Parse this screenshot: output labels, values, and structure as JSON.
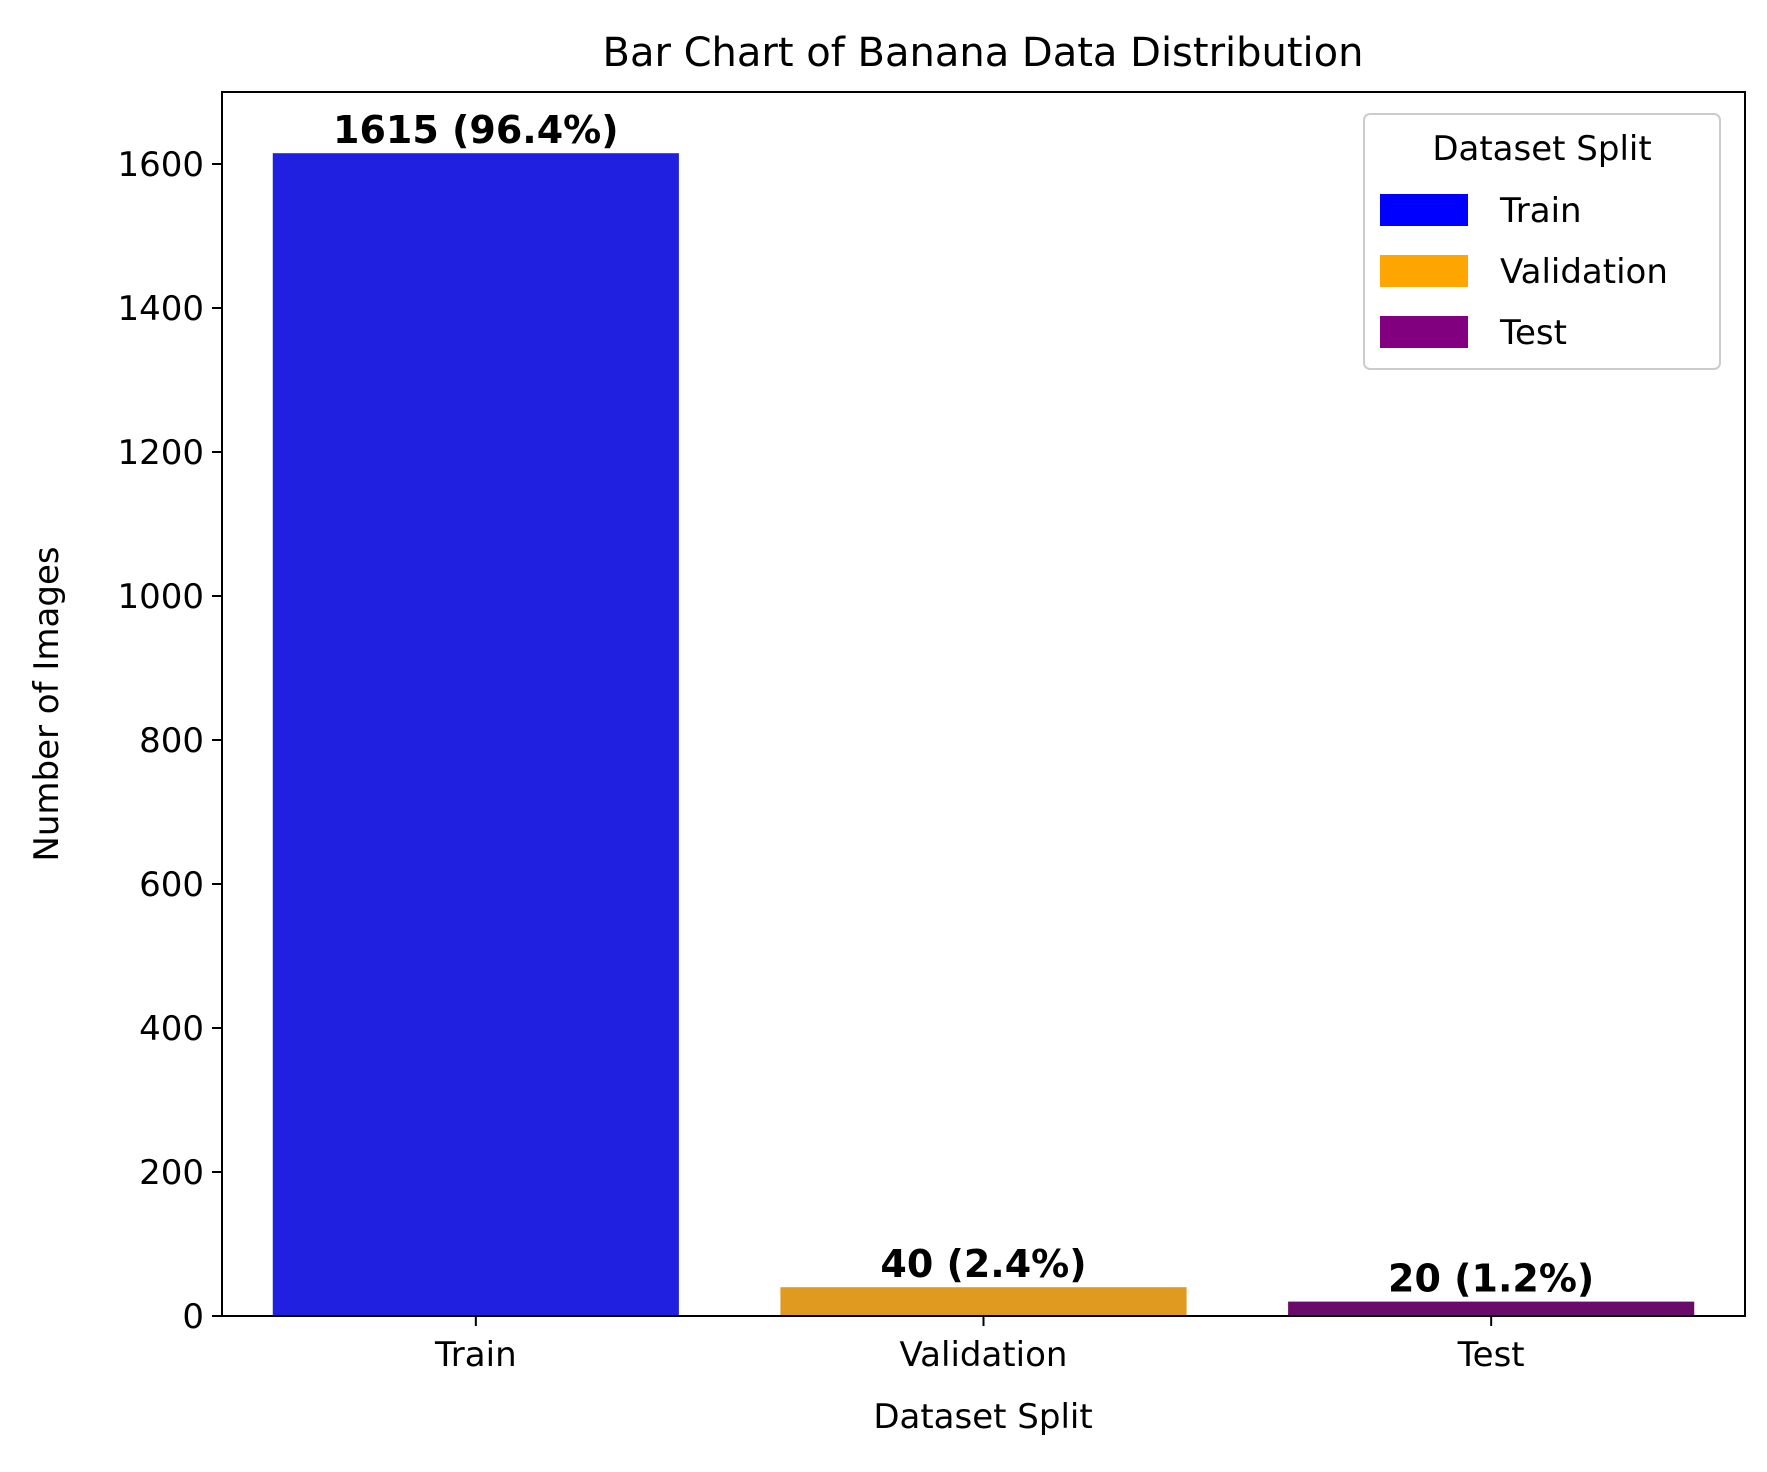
{
  "chart_data": {
    "type": "bar",
    "title": "Bar Chart of Banana Data Distribution",
    "xlabel": "Dataset Split",
    "ylabel": "Number of Images",
    "categories": [
      "Train",
      "Validation",
      "Test"
    ],
    "values": [
      1615,
      40,
      20
    ],
    "data_labels": [
      "1615 (96.4%)",
      "40 (2.4%)",
      "20 (1.2%)"
    ],
    "bar_colors": [
      "#2020e0",
      "#e09a20",
      "#6a0a6a"
    ],
    "ylim": [
      0,
      1700
    ],
    "yticks": [
      0,
      200,
      400,
      600,
      800,
      1000,
      1200,
      1400,
      1600
    ],
    "grid": false,
    "legend": {
      "title": "Dataset Split",
      "placement": "top-right",
      "entries": [
        {
          "label": "Train",
          "color": "#0000ff"
        },
        {
          "label": "Validation",
          "color": "#ffa500"
        },
        {
          "label": "Test",
          "color": "#800080"
        }
      ]
    }
  }
}
